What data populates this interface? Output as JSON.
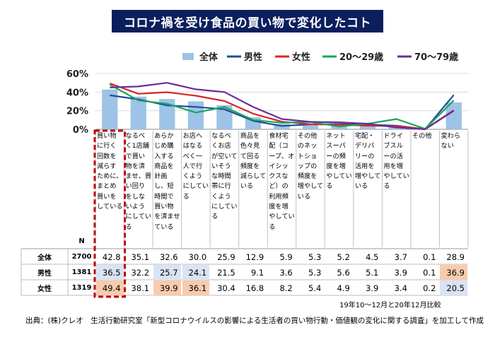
{
  "title": "コロナ禍を受け食品の買い物で変化したコト",
  "n_label": "N",
  "source": "出典：(株)クレオ　生活行動研究室「新型コロナウイルスの影響による生活者の買い物行動・価値観の変化に関する調査」を加工して作成",
  "period_note": "19年10～12月と20年12月比較",
  "colors": {
    "title_bg": "#0a1f5c",
    "bar": "#9dc3e6",
    "male": "#1f4e9a",
    "female": "#d62728",
    "age20": "#17a65a",
    "age70": "#6a2c9a",
    "highlight_orange": "#f8cbad",
    "highlight_blue": "#dae3f3",
    "dashed_box": "#c00000"
  },
  "chart_data": {
    "type": "bar",
    "ylim": [
      0,
      60
    ],
    "yticks": [
      "0%",
      "20%",
      "40%",
      "60%"
    ],
    "grid": true,
    "legend_position": "top",
    "categories": [
      "買い物に行く回数を減らすために、まとめ買いをしている",
      "なるべく1店舗で買い物を済ませ、買い回りをしないようにしている",
      "あらかじめ購入する商品を計画し、短時間で買い物を済ませている",
      "お店へはなるべく一人で行くようにしている",
      "なるべくお店が空いていそうな時間帯に行くようにしている",
      "商品を色々見て回る頻度を減らしている",
      "食材宅配（コープ、オイシックスなど）の利用頻度を増やしている",
      "その他のネットショップの頻度を増やしている",
      "ネットスーパーの頻度を増やしている",
      "宅配・デリバリーの活用を増やしている",
      "ドライブスルーの活用を増やしている",
      "その他",
      "変わらない"
    ],
    "series": [
      {
        "name": "全体",
        "type": "bar",
        "values": [
          42.8,
          35.1,
          32.6,
          30.0,
          25.9,
          12.9,
          5.9,
          5.3,
          5.2,
          4.5,
          3.7,
          0.1,
          28.9
        ]
      },
      {
        "name": "男性",
        "type": "line",
        "values": [
          36.5,
          32.2,
          25.7,
          24.1,
          21.5,
          9.1,
          3.6,
          5.3,
          5.6,
          5.1,
          3.9,
          0.1,
          36.9
        ]
      },
      {
        "name": "女性",
        "type": "line",
        "values": [
          49.4,
          38.1,
          39.9,
          36.1,
          30.4,
          16.8,
          8.2,
          5.4,
          4.9,
          3.9,
          3.4,
          0.2,
          20.5
        ]
      },
      {
        "name": "20～29歳",
        "type": "line",
        "values": [
          48.0,
          31.0,
          27.5,
          18.0,
          24.0,
          10.0,
          7.0,
          8.0,
          3.0,
          6.0,
          11.0,
          0.5,
          31.0
        ]
      },
      {
        "name": "70～79歳",
        "type": "line",
        "values": [
          45.0,
          46.0,
          50.0,
          43.0,
          40.0,
          24.0,
          11.0,
          8.0,
          7.5,
          6.0,
          2.0,
          0.0,
          20.0
        ]
      }
    ]
  },
  "table": {
    "rows": [
      {
        "label": "全体",
        "n": "2700",
        "values": [
          "42.8",
          "35.1",
          "32.6",
          "30.0",
          "25.9",
          "12.9",
          "5.9",
          "5.3",
          "5.2",
          "4.5",
          "3.7",
          "0.1",
          "28.9"
        ],
        "highlights": [
          "",
          "",
          "",
          "",
          "",
          "",
          "",
          "",
          "",
          "",
          "",
          "",
          ""
        ]
      },
      {
        "label": "男性",
        "n": "1381",
        "values": [
          "36.5",
          "32.2",
          "25.7",
          "24.1",
          "21.5",
          "9.1",
          "3.6",
          "5.3",
          "5.6",
          "5.1",
          "3.9",
          "0.1",
          "36.9"
        ],
        "highlights": [
          "blue",
          "",
          "blue",
          "blue",
          "",
          "",
          "",
          "",
          "",
          "",
          "",
          "",
          "orange"
        ]
      },
      {
        "label": "女性",
        "n": "1319",
        "values": [
          "49.4",
          "38.1",
          "39.9",
          "36.1",
          "30.4",
          "16.8",
          "8.2",
          "5.4",
          "4.9",
          "3.9",
          "3.4",
          "0.2",
          "20.5"
        ],
        "highlights": [
          "orange",
          "",
          "orange",
          "orange",
          "",
          "",
          "",
          "",
          "",
          "",
          "",
          "",
          "blue"
        ]
      }
    ]
  }
}
